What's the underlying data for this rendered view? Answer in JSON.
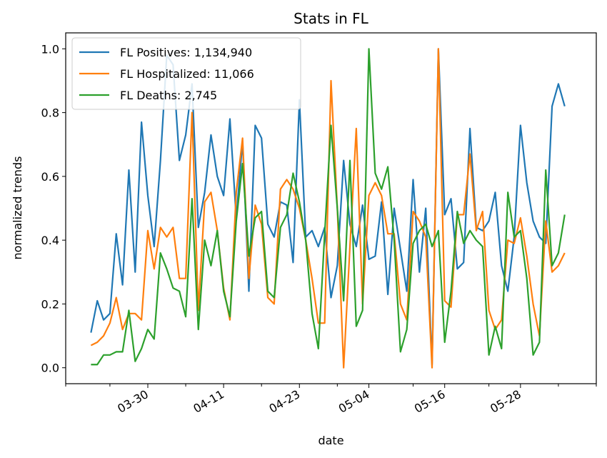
{
  "chart_data": {
    "type": "line",
    "title": "Stats in FL",
    "xlabel": "date",
    "ylabel": "normalized trends",
    "x_tick_labels": [
      "03-30",
      "04-11",
      "04-23",
      "05-04",
      "05-16",
      "05-28"
    ],
    "y_tick_labels": [
      "0.0",
      "0.2",
      "0.4",
      "0.6",
      "0.8",
      "1.0"
    ],
    "xlim": [
      -4,
      80
    ],
    "ylim": [
      -0.05,
      1.05
    ],
    "grid": false,
    "legend_position": "upper-left",
    "series": [
      {
        "name": "FL Positives: 1,134,940",
        "color": "#1f77b4",
        "values": [
          0.11,
          0.21,
          0.15,
          0.17,
          0.42,
          0.26,
          0.62,
          0.3,
          0.77,
          0.54,
          0.38,
          0.65,
          0.98,
          0.95,
          0.65,
          0.73,
          0.89,
          0.44,
          0.55,
          0.73,
          0.6,
          0.54,
          0.78,
          0.47,
          0.71,
          0.24,
          0.76,
          0.72,
          0.45,
          0.41,
          0.52,
          0.51,
          0.33,
          0.84,
          0.41,
          0.43,
          0.38,
          0.44,
          0.22,
          0.32,
          0.65,
          0.45,
          0.38,
          0.51,
          0.34,
          0.35,
          0.52,
          0.23,
          0.5,
          0.37,
          0.24,
          0.59,
          0.3,
          0.5,
          0.01,
          1.0,
          0.48,
          0.53,
          0.31,
          0.33,
          0.75,
          0.44,
          0.43,
          0.46,
          0.55,
          0.32,
          0.24,
          0.41,
          0.76,
          0.58,
          0.46,
          0.41,
          0.39,
          0.82,
          0.89,
          0.82
        ]
      },
      {
        "name": "FL Hospitalized: 11,066",
        "color": "#ff7f0e",
        "values": [
          0.07,
          0.08,
          0.1,
          0.14,
          0.22,
          0.12,
          0.17,
          0.17,
          0.15,
          0.43,
          0.31,
          0.44,
          0.41,
          0.44,
          0.28,
          0.28,
          0.8,
          0.18,
          0.52,
          0.55,
          0.43,
          0.25,
          0.15,
          0.55,
          0.72,
          0.28,
          0.51,
          0.45,
          0.22,
          0.2,
          0.56,
          0.59,
          0.56,
          0.5,
          0.4,
          0.28,
          0.14,
          0.14,
          0.9,
          0.5,
          0.0,
          0.38,
          0.75,
          0.2,
          0.54,
          0.58,
          0.54,
          0.42,
          0.42,
          0.2,
          0.15,
          0.49,
          0.46,
          0.41,
          0.0,
          1.0,
          0.21,
          0.19,
          0.48,
          0.48,
          0.67,
          0.43,
          0.49,
          0.18,
          0.12,
          0.15,
          0.4,
          0.39,
          0.47,
          0.35,
          0.2,
          0.1,
          0.46,
          0.3,
          0.32,
          0.36
        ]
      },
      {
        "name": "FL Deaths: 2,745",
        "color": "#2ca02c",
        "values": [
          0.01,
          0.01,
          0.04,
          0.04,
          0.05,
          0.05,
          0.18,
          0.02,
          0.06,
          0.12,
          0.09,
          0.36,
          0.31,
          0.25,
          0.24,
          0.16,
          0.53,
          0.12,
          0.4,
          0.32,
          0.43,
          0.24,
          0.16,
          0.46,
          0.64,
          0.35,
          0.47,
          0.49,
          0.24,
          0.22,
          0.44,
          0.48,
          0.61,
          0.52,
          0.4,
          0.17,
          0.06,
          0.42,
          0.76,
          0.5,
          0.21,
          0.65,
          0.13,
          0.18,
          1.0,
          0.61,
          0.56,
          0.63,
          0.4,
          0.05,
          0.12,
          0.39,
          0.43,
          0.45,
          0.38,
          0.43,
          0.08,
          0.24,
          0.49,
          0.39,
          0.43,
          0.4,
          0.38,
          0.04,
          0.13,
          0.06,
          0.55,
          0.41,
          0.43,
          0.28,
          0.04,
          0.08,
          0.62,
          0.32,
          0.36,
          0.48
        ]
      }
    ]
  }
}
